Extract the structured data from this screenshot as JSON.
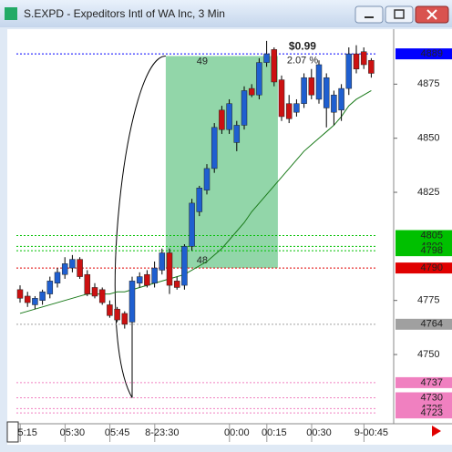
{
  "window": {
    "title": "S.EXPD - Expeditors Intl of WA Inc, 3 Min"
  },
  "chart_data": {
    "type": "candlestick",
    "categories": [
      null,
      "5:15",
      null,
      null,
      null,
      null,
      null,
      "05:30",
      null,
      null,
      null,
      null,
      null,
      "05:45",
      null,
      null,
      null,
      null,
      null,
      "8-23:30",
      null,
      null,
      null,
      null,
      null,
      null,
      null,
      null,
      null,
      "00:00",
      null,
      null,
      null,
      null,
      "00:15",
      null,
      null,
      null,
      null,
      null,
      "00:30",
      null,
      null,
      null,
      null,
      null,
      null,
      "9-00:45"
    ],
    "open": [
      4780,
      4777,
      4773,
      4775,
      4778,
      4783,
      4787,
      4790,
      4794,
      4787,
      4781,
      4780,
      4773,
      4771,
      4769,
      4765,
      4783,
      4787,
      4783,
      4789,
      4797,
      4784,
      4782,
      4800,
      4816,
      4826,
      4836,
      4863,
      4854,
      4848,
      4856,
      4873,
      4870,
      4885,
      4891,
      4877,
      4866,
      4862,
      4866,
      4878,
      4868,
      4864,
      4862,
      4863,
      4873,
      4889,
      4890,
      4886
    ],
    "high": [
      4782,
      4779,
      4777,
      4780,
      4786,
      4790,
      4795,
      4796,
      4795,
      4789,
      4783,
      4781,
      4775,
      4772,
      4770,
      4786,
      4788,
      4789,
      4793,
      4799,
      4799,
      4786,
      4801,
      4822,
      4828,
      4838,
      4857,
      4865,
      4868,
      4858,
      4874,
      4875,
      4887,
      4895,
      4892,
      4879,
      4870,
      4868,
      4880,
      4882,
      4886,
      4880,
      4872,
      4875,
      4892,
      4893,
      4892,
      4887
    ],
    "low": [
      4774,
      4772,
      4771,
      4773,
      4776,
      4781,
      4785,
      4788,
      4785,
      4777,
      4776,
      4773,
      4767,
      4765,
      4762,
      4730,
      4781,
      4781,
      4781,
      4787,
      4778,
      4780,
      4780,
      4798,
      4814,
      4824,
      4834,
      4852,
      4852,
      4844,
      4854,
      4869,
      4868,
      4883,
      4874,
      4858,
      4857,
      4860,
      4864,
      4868,
      4866,
      4855,
      4856,
      4858,
      4870,
      4880,
      4882,
      4878
    ],
    "close": [
      4776,
      4774,
      4776,
      4779,
      4784,
      4788,
      4792,
      4794,
      4786,
      4778,
      4777,
      4774,
      4768,
      4766,
      4764,
      4784,
      4786,
      4782,
      4790,
      4797,
      4782,
      4781,
      4800,
      4820,
      4827,
      4836,
      4855,
      4854,
      4866,
      4856,
      4872,
      4870,
      4885,
      4889,
      4876,
      4860,
      4859,
      4866,
      4878,
      4870,
      4884,
      4878,
      4870,
      4873,
      4889,
      4882,
      4884,
      4880
    ],
    "up_color": "#1f5fd0",
    "down_color": "#cc1111",
    "series": [
      {
        "color": "#1a7a1a",
        "values": [
          4769,
          4770,
          4771,
          4772,
          4773,
          4774,
          4775,
          4776,
          4777,
          4778,
          4778,
          4778,
          4778,
          4779,
          4779,
          4780,
          4781,
          4782,
          4783,
          4784,
          4785,
          4786,
          4787,
          4789,
          4791,
          4793,
          4796,
          4799,
          4803,
          4807,
          4811,
          4816,
          4820,
          4824,
          4828,
          4832,
          4836,
          4840,
          4844,
          4847,
          4850,
          4853,
          4856,
          4860,
          4865,
          4868,
          4870,
          4872
        ]
      }
    ],
    "ylim": [
      4718,
      4900
    ],
    "yticks": [
      4750,
      4775,
      4825,
      4850,
      4875
    ],
    "levels": [
      {
        "value": 4889,
        "color": "#0000ff",
        "label_color": "#ffffff"
      },
      {
        "value": 4805,
        "color": "#00c000",
        "label_color": "#000000"
      },
      {
        "value": 4800,
        "color": "#00c000",
        "label_color": "#000000"
      },
      {
        "value": 4798,
        "color": "#00c000",
        "label_color": "#000000"
      },
      {
        "value": 4790,
        "color": "#e00000",
        "label_color": "#ffffff"
      },
      {
        "value": 4764,
        "color": "#a0a0a0",
        "label_color": "#ffffff"
      },
      {
        "value": 4737,
        "color": "#f080c0",
        "label_color": "#000000"
      },
      {
        "value": 4730,
        "color": "#f080c0",
        "label_color": "#000000"
      },
      {
        "value": 4725,
        "color": "#f080c0",
        "label_color": "#000000"
      },
      {
        "value": 4723,
        "color": "#f080c0",
        "label_color": "#000000"
      }
    ],
    "trade_box": {
      "top": 4888,
      "bottom": 4790,
      "color": "#7fcf9a",
      "top_label": "49",
      "bottom_label": "48",
      "gain": "$0.99",
      "gain_pct": "2.07 %"
    }
  }
}
